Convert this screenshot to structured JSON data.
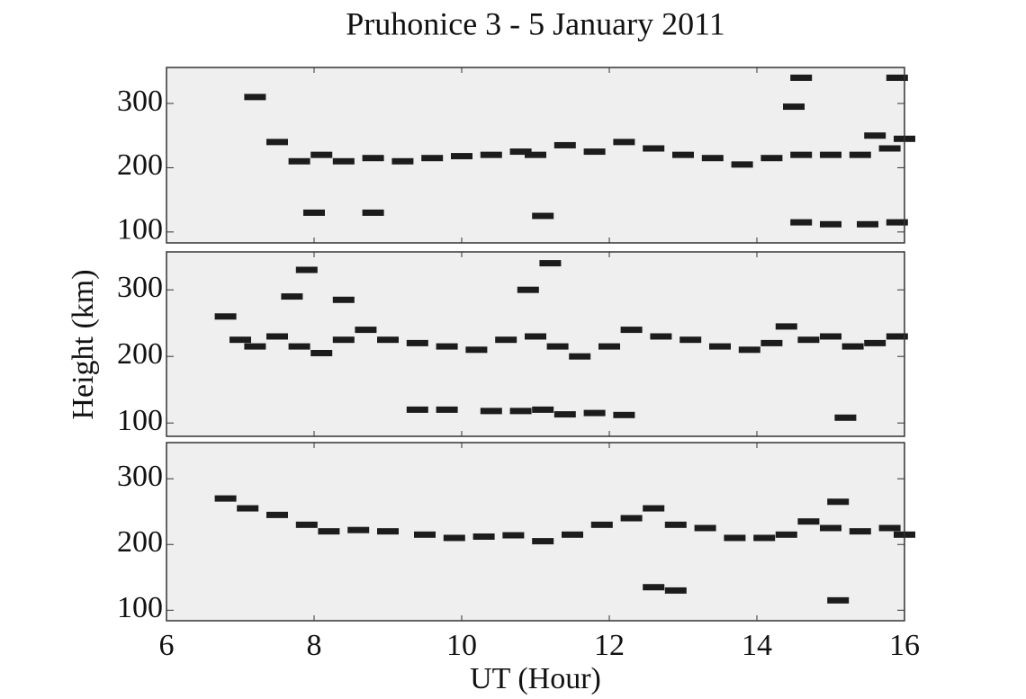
{
  "chart_data": {
    "type": "scatter",
    "title": "Pruhonice 3 - 5 January 2011",
    "xlabel": "UT (Hour)",
    "ylabel": "Height (km)",
    "xlim": [
      6,
      16
    ],
    "xticks": [
      6,
      8,
      10,
      12,
      14,
      16
    ],
    "background": "#efefef",
    "panels": [
      {
        "ylim": [
          83,
          356
        ],
        "yticks": [
          100,
          200,
          300
        ],
        "series": [
          {
            "color": "#1c1c1c",
            "x": [
              7.2,
              7.5,
              7.8,
              8.1,
              8.4,
              8.8,
              9.2,
              9.6,
              10.0,
              10.4,
              10.8,
              11.0,
              11.4,
              11.8,
              12.2,
              12.6,
              13.0,
              13.4,
              13.8,
              14.2,
              14.6,
              15.0,
              15.4,
              15.8,
              16.0,
              8.0,
              8.8,
              11.1,
              14.6,
              15.0,
              15.5,
              15.9,
              14.5,
              14.6,
              15.9,
              15.6
            ],
            "values": [
              310,
              240,
              210,
              220,
              210,
              215,
              210,
              215,
              218,
              220,
              225,
              220,
              235,
              225,
              240,
              230,
              220,
              215,
              205,
              215,
              220,
              220,
              220,
              230,
              245,
              130,
              130,
              125,
              115,
              112,
              112,
              115,
              295,
              340,
              340,
              250
            ]
          }
        ]
      },
      {
        "ylim": [
          80,
          357
        ],
        "yticks": [
          100,
          200,
          300
        ],
        "series": [
          {
            "color": "#1c1c1c",
            "x": [
              6.8,
              7.0,
              7.2,
              7.5,
              7.8,
              8.1,
              8.4,
              8.7,
              9.0,
              9.4,
              9.8,
              10.2,
              10.6,
              11.0,
              11.3,
              11.6,
              12.0,
              12.3,
              12.7,
              13.1,
              13.5,
              13.9,
              14.2,
              14.4,
              14.7,
              15.0,
              15.3,
              15.6,
              15.9,
              9.4,
              9.8,
              10.4,
              10.8,
              11.1,
              11.4,
              11.8,
              12.2,
              15.2,
              7.7,
              7.9,
              8.4,
              11.2,
              10.9
            ],
            "values": [
              260,
              225,
              215,
              230,
              215,
              205,
              225,
              240,
              225,
              220,
              215,
              210,
              225,
              230,
              215,
              200,
              215,
              240,
              230,
              225,
              215,
              210,
              220,
              245,
              225,
              230,
              215,
              220,
              230,
              120,
              120,
              118,
              118,
              120,
              113,
              115,
              112,
              108,
              290,
              330,
              285,
              340,
              300
            ]
          }
        ]
      },
      {
        "ylim": [
          84,
          355
        ],
        "yticks": [
          100,
          200,
          300
        ],
        "series": [
          {
            "color": "#1c1c1c",
            "x": [
              6.8,
              7.1,
              7.5,
              7.9,
              8.2,
              8.6,
              9.0,
              9.5,
              9.9,
              10.3,
              10.7,
              11.1,
              11.5,
              11.9,
              12.3,
              12.6,
              12.9,
              13.3,
              13.7,
              14.1,
              14.4,
              14.7,
              15.0,
              15.4,
              15.8,
              16.0,
              12.6,
              12.9,
              15.1,
              15.1
            ],
            "values": [
              270,
              255,
              245,
              230,
              220,
              222,
              220,
              215,
              210,
              212,
              214,
              205,
              215,
              230,
              240,
              255,
              230,
              225,
              210,
              210,
              215,
              235,
              225,
              220,
              225,
              215,
              135,
              130,
              115,
              265
            ]
          }
        ]
      }
    ]
  }
}
